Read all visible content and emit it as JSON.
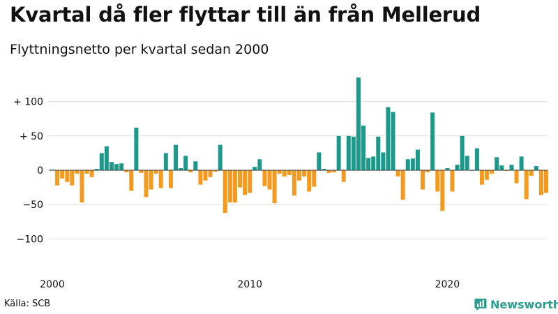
{
  "header": {
    "title": "Kvartal då fler flyttar till än från Mellerud",
    "subtitle": "Flyttningsnetto per kvartal sedan 2000"
  },
  "footer": {
    "source": "Källa: SCB",
    "brand": "Newsworthy",
    "brand_icon": "newsworthy-chart-icon"
  },
  "colors": {
    "positive": "#1b9a8b",
    "negative": "#f49a1e",
    "brand": "#2a9d8f",
    "grid": "#dddddd",
    "baseline": "#333333"
  },
  "chart_data": {
    "type": "bar",
    "x_ticks": [
      "2000",
      "2010",
      "2020"
    ],
    "y_ticks": [
      {
        "value": 100,
        "label": "+ 100"
      },
      {
        "value": 50,
        "label": "+  50"
      },
      {
        "value": 0,
        "label": "0"
      },
      {
        "value": -50,
        "label": "−50"
      },
      {
        "value": -100,
        "label": "−100"
      }
    ],
    "ylim": [
      -120,
      145
    ],
    "grid": true,
    "start_year": 2000,
    "periods_per_year": 4,
    "values": [
      1,
      -22,
      -12,
      -17,
      -22,
      -5,
      -47,
      -5,
      -10,
      2,
      25,
      35,
      12,
      9,
      10,
      -3,
      -30,
      62,
      -4,
      -39,
      -28,
      -5,
      -26,
      25,
      -26,
      37,
      3,
      21,
      -3,
      13,
      -21,
      -15,
      -10,
      -2,
      37,
      -62,
      -47,
      -47,
      -25,
      -36,
      -33,
      5,
      16,
      -23,
      -28,
      -48,
      -5,
      -9,
      -7,
      -37,
      -15,
      -9,
      -31,
      -24,
      26,
      2,
      -4,
      -3,
      50,
      -17,
      50,
      49,
      135,
      65,
      18,
      20,
      49,
      26,
      92,
      85,
      -9,
      -43,
      16,
      17,
      30,
      -28,
      -3,
      84,
      -31,
      -59,
      3,
      -31,
      8,
      50,
      21,
      0,
      32,
      -21,
      -14,
      -5,
      19,
      7,
      -1,
      8,
      -19,
      20,
      -42,
      -8,
      6,
      -36,
      -33
    ]
  }
}
